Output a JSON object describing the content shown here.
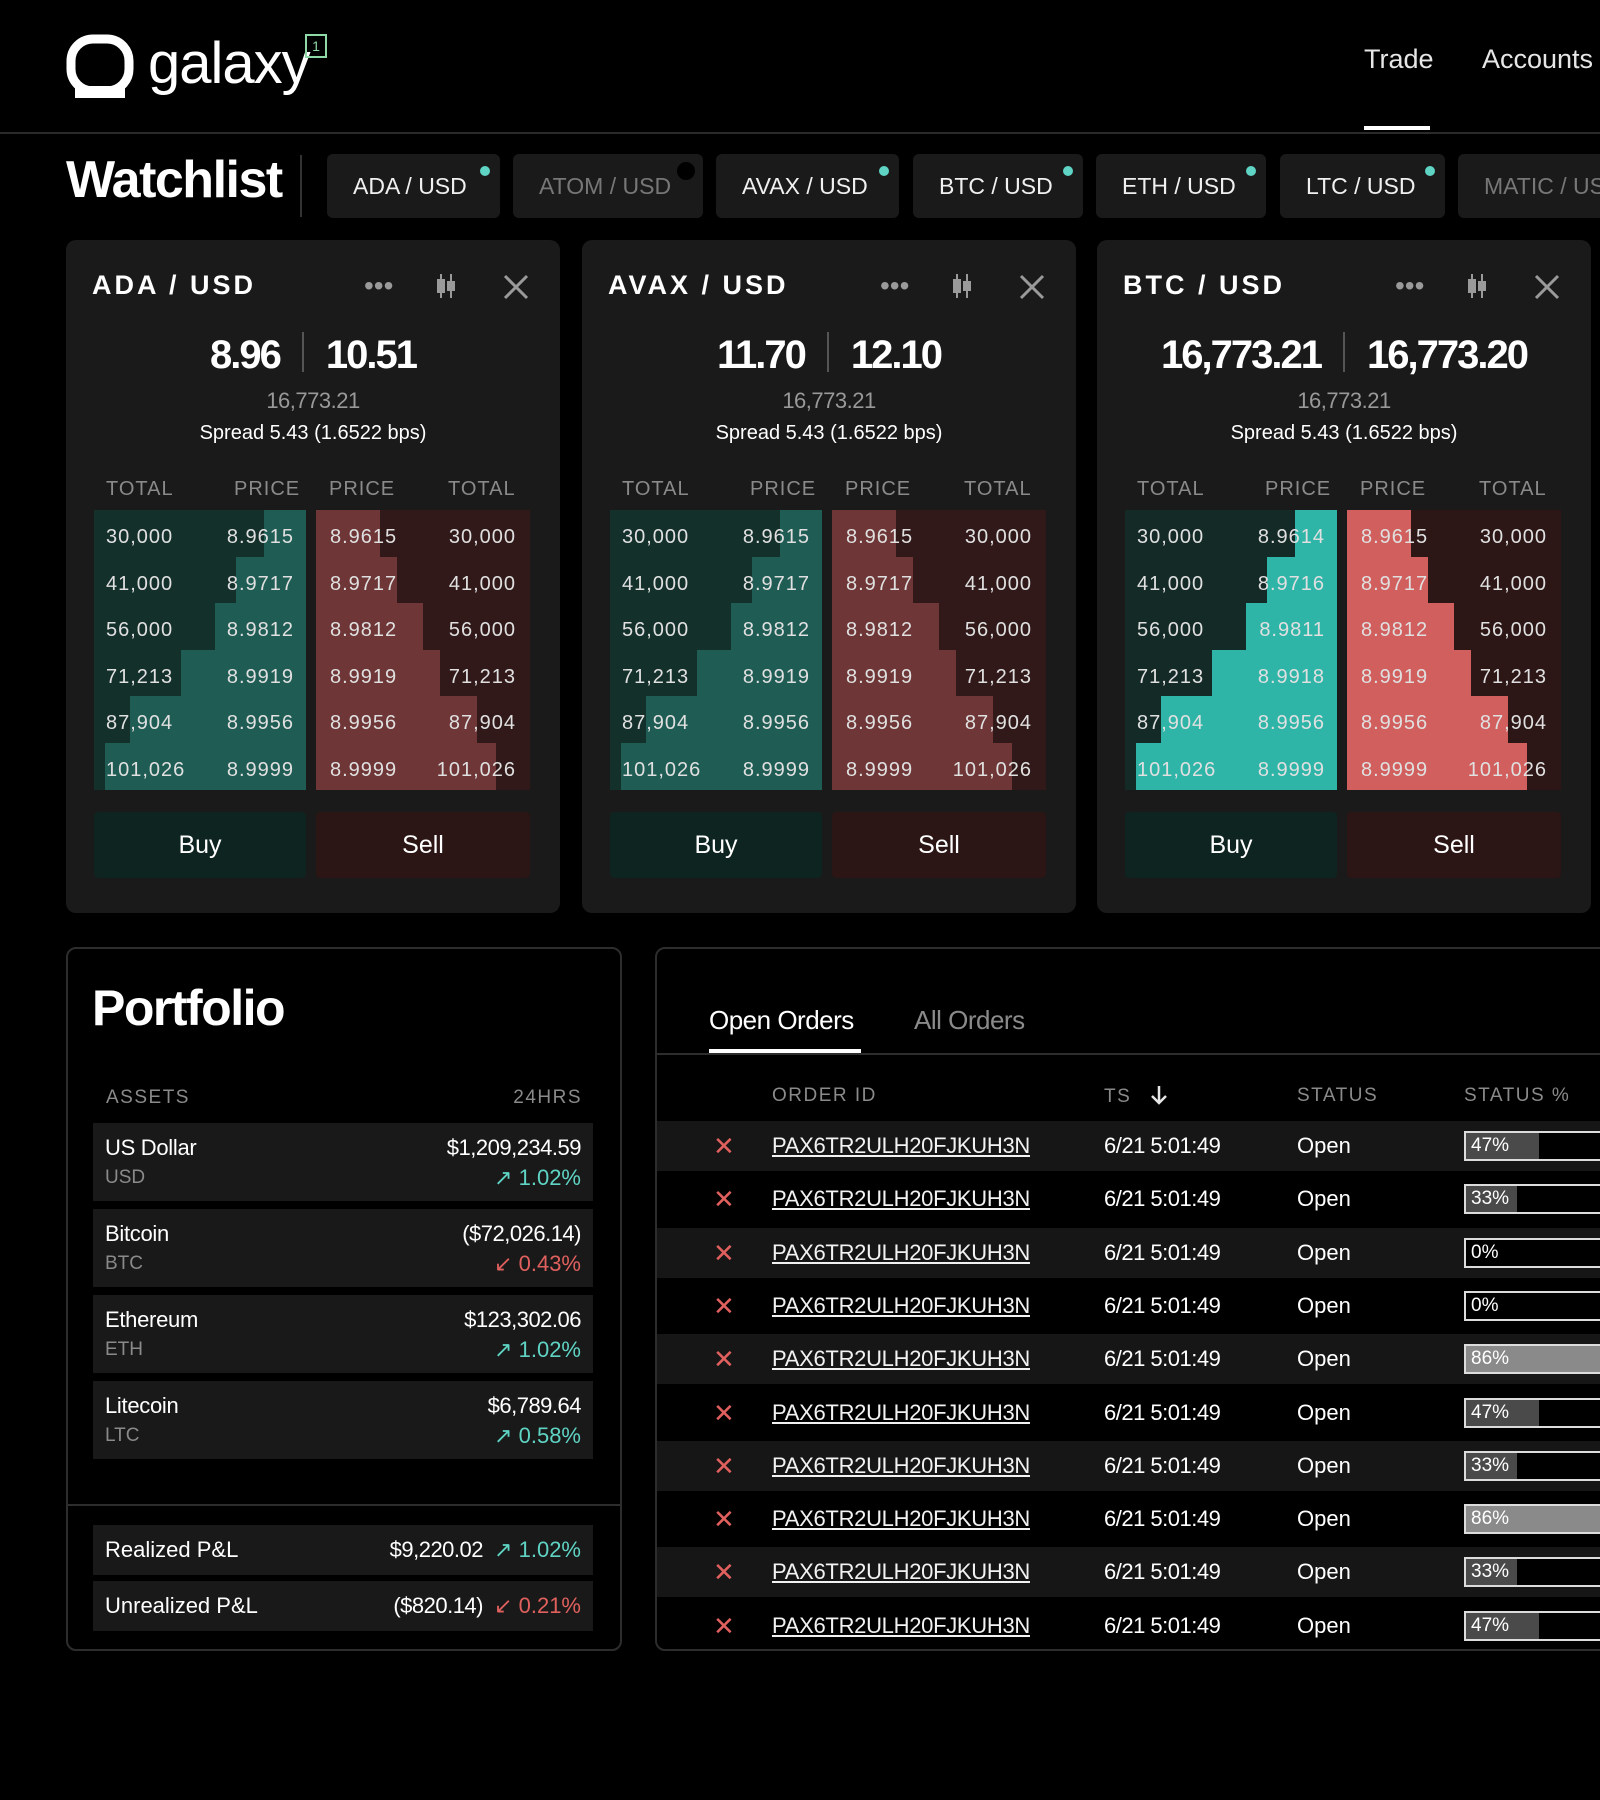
{
  "header": {
    "brand": "galaxy",
    "badge": "1",
    "nav": {
      "trade": "Trade",
      "accounts": "Accounts"
    }
  },
  "watchlist": {
    "title": "Watchlist",
    "tabs": [
      {
        "label": "ADA / USD",
        "active": true
      },
      {
        "label": "ATOM / USD",
        "active": false
      },
      {
        "label": "AVAX / USD",
        "active": true
      },
      {
        "label": "BTC / USD",
        "active": true
      },
      {
        "label": "ETH / USD",
        "active": true
      },
      {
        "label": "LTC / USD",
        "active": true
      },
      {
        "label": "MATIC / USD",
        "active": false
      }
    ]
  },
  "cards": [
    {
      "pair": "ADA / USD",
      "bid": "8.96",
      "ask": "10.51",
      "mid": "16,773.21",
      "spread": "Spread 5.43 (1.6522 bps)",
      "headers": {
        "bid_total": "TOTAL",
        "bid_price": "PRICE",
        "ask_price": "PRICE",
        "ask_total": "TOTAL"
      },
      "bids": [
        {
          "total": "30,000",
          "price": "8.9615",
          "depth": 0.2
        },
        {
          "total": "41,000",
          "price": "8.9717",
          "depth": 0.33
        },
        {
          "total": "56,000",
          "price": "8.9812",
          "depth": 0.43
        },
        {
          "total": "71,213",
          "price": "8.9919",
          "depth": 0.59
        },
        {
          "total": "87,904",
          "price": "8.9956",
          "depth": 0.83
        },
        {
          "total": "101,026",
          "price": "8.9999",
          "depth": 0.95
        }
      ],
      "asks": [
        {
          "price": "8.9615",
          "total": "30,000",
          "depth": 0.3
        },
        {
          "price": "8.9717",
          "total": "41,000",
          "depth": 0.38
        },
        {
          "price": "8.9812",
          "total": "56,000",
          "depth": 0.5
        },
        {
          "price": "8.9919",
          "total": "71,213",
          "depth": 0.58
        },
        {
          "price": "8.9956",
          "total": "87,904",
          "depth": 0.75
        },
        {
          "price": "8.9999",
          "total": "101,026",
          "depth": 0.84
        }
      ],
      "buy": "Buy",
      "sell": "Sell",
      "highlight": false
    },
    {
      "pair": "AVAX / USD",
      "bid": "11.70",
      "ask": "12.10",
      "mid": "16,773.21",
      "spread": "Spread 5.43 (1.6522 bps)",
      "headers": {
        "bid_total": "TOTAL",
        "bid_price": "PRICE",
        "ask_price": "PRICE",
        "ask_total": "TOTAL"
      },
      "bids": [
        {
          "total": "30,000",
          "price": "8.9615",
          "depth": 0.2
        },
        {
          "total": "41,000",
          "price": "8.9717",
          "depth": 0.33
        },
        {
          "total": "56,000",
          "price": "8.9812",
          "depth": 0.43
        },
        {
          "total": "71,213",
          "price": "8.9919",
          "depth": 0.59
        },
        {
          "total": "87,904",
          "price": "8.9956",
          "depth": 0.83
        },
        {
          "total": "101,026",
          "price": "8.9999",
          "depth": 0.95
        }
      ],
      "asks": [
        {
          "price": "8.9615",
          "total": "30,000",
          "depth": 0.3
        },
        {
          "price": "8.9717",
          "total": "41,000",
          "depth": 0.38
        },
        {
          "price": "8.9812",
          "total": "56,000",
          "depth": 0.5
        },
        {
          "price": "8.9919",
          "total": "71,213",
          "depth": 0.58
        },
        {
          "price": "8.9956",
          "total": "87,904",
          "depth": 0.75
        },
        {
          "price": "8.9999",
          "total": "101,026",
          "depth": 0.84
        }
      ],
      "buy": "Buy",
      "sell": "Sell",
      "highlight": false
    },
    {
      "pair": "BTC / USD",
      "bid": "16,773.21",
      "ask": "16,773.20",
      "mid": "16,773.21",
      "spread": "Spread 5.43 (1.6522 bps)",
      "headers": {
        "bid_total": "TOTAL",
        "bid_price": "PRICE",
        "ask_price": "PRICE",
        "ask_total": "TOTAL"
      },
      "bids": [
        {
          "total": "30,000",
          "price": "8.9614",
          "depth": 0.2
        },
        {
          "total": "41,000",
          "price": "8.9716",
          "depth": 0.33
        },
        {
          "total": "56,000",
          "price": "8.9811",
          "depth": 0.43
        },
        {
          "total": "71,213",
          "price": "8.9918",
          "depth": 0.59
        },
        {
          "total": "87,904",
          "price": "8.9956",
          "depth": 0.83
        },
        {
          "total": "101,026",
          "price": "8.9999",
          "depth": 0.95
        }
      ],
      "asks": [
        {
          "price": "8.9615",
          "total": "30,000",
          "depth": 0.3
        },
        {
          "price": "8.9717",
          "total": "41,000",
          "depth": 0.38
        },
        {
          "price": "8.9812",
          "total": "56,000",
          "depth": 0.5
        },
        {
          "price": "8.9919",
          "total": "71,213",
          "depth": 0.58
        },
        {
          "price": "8.9956",
          "total": "87,904",
          "depth": 0.75
        },
        {
          "price": "8.9999",
          "total": "101,026",
          "depth": 0.84
        }
      ],
      "buy": "Buy",
      "sell": "Sell",
      "highlight": true
    }
  ],
  "portfolio": {
    "title": "Portfolio",
    "col_assets": "ASSETS",
    "col_24h": "24HRS",
    "assets": [
      {
        "name": "US Dollar",
        "symbol": "USD",
        "value": "$1,209,234.59",
        "change": "1.02%",
        "dir": "up"
      },
      {
        "name": "Bitcoin",
        "symbol": "BTC",
        "value": "($72,026.14)",
        "change": "0.43%",
        "dir": "down"
      },
      {
        "name": "Ethereum",
        "symbol": "ETH",
        "value": "$123,302.06",
        "change": "1.02%",
        "dir": "up"
      },
      {
        "name": "Litecoin",
        "symbol": "LTC",
        "value": "$6,789.64",
        "change": "0.58%",
        "dir": "up"
      }
    ],
    "realized": {
      "label": "Realized P&L",
      "value": "$9,220.02",
      "change": "1.02%",
      "dir": "up"
    },
    "unrealized": {
      "label": "Unrealized P&L",
      "value": "($820.14)",
      "change": "0.21%",
      "dir": "down"
    }
  },
  "orders": {
    "tabs": {
      "open": "Open Orders",
      "all": "All Orders"
    },
    "columns": {
      "order_id": "ORDER ID",
      "ts": "TS",
      "status": "STATUS",
      "status_pct": "STATUS %"
    },
    "rows": [
      {
        "id": "PAX6TR2ULH20FJKUH3N",
        "ts": "6/21 5:01:49",
        "status": "Open",
        "pct": "47%",
        "fill": 0.47
      },
      {
        "id": "PAX6TR2ULH20FJKUH3N",
        "ts": "6/21 5:01:49",
        "status": "Open",
        "pct": "33%",
        "fill": 0.33
      },
      {
        "id": "PAX6TR2ULH20FJKUH3N",
        "ts": "6/21 5:01:49",
        "status": "Open",
        "pct": "0%",
        "fill": 0
      },
      {
        "id": "PAX6TR2ULH20FJKUH3N",
        "ts": "6/21 5:01:49",
        "status": "Open",
        "pct": "0%",
        "fill": 0
      },
      {
        "id": "PAX6TR2ULH20FJKUH3N",
        "ts": "6/21 5:01:49",
        "status": "Open",
        "pct": "86%",
        "fill": 0.86
      },
      {
        "id": "PAX6TR2ULH20FJKUH3N",
        "ts": "6/21 5:01:49",
        "status": "Open",
        "pct": "47%",
        "fill": 0.47
      },
      {
        "id": "PAX6TR2ULH20FJKUH3N",
        "ts": "6/21 5:01:49",
        "status": "Open",
        "pct": "33%",
        "fill": 0.33
      },
      {
        "id": "PAX6TR2ULH20FJKUH3N",
        "ts": "6/21 5:01:49",
        "status": "Open",
        "pct": "86%",
        "fill": 0.86
      },
      {
        "id": "PAX6TR2ULH20FJKUH3N",
        "ts": "6/21 5:01:49",
        "status": "Open",
        "pct": "33%",
        "fill": 0.33
      },
      {
        "id": "PAX6TR2ULH20FJKUH3N",
        "ts": "6/21 5:01:49",
        "status": "Open",
        "pct": "47%",
        "fill": 0.47
      }
    ]
  },
  "icons": {
    "more": "more-dots-icon",
    "chart": "candlestick-icon",
    "close": "close-icon",
    "cancel": "cancel-x-icon",
    "up": "arrow-up-right-icon",
    "down": "arrow-down-left-icon",
    "sort": "sort-down-icon"
  },
  "colors": {
    "up": "#5fd4c4",
    "down": "#e0605d",
    "bg": "#000000",
    "panel": "#1a1a1a"
  }
}
